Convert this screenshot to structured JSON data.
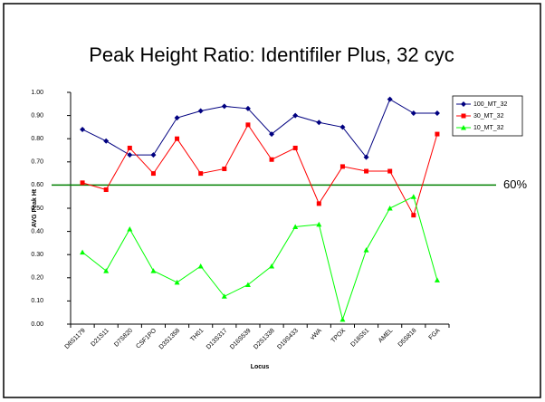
{
  "chart_data": {
    "type": "line",
    "title": "Peak Height Ratio: Identifiler Plus, 32 cyc",
    "x_label": "Locus",
    "y_label": "AVG Peak Ht",
    "categories": [
      "D8S1179",
      "D21S11",
      "D7S820",
      "CSF1PO",
      "D3S1358",
      "TH01",
      "D13S317",
      "D16S539",
      "D2S1338",
      "D19S433",
      "vWA",
      "TPOX",
      "D18S51",
      "AMEL",
      "D5S818",
      "FGA"
    ],
    "series": [
      {
        "name": "100_MT_32",
        "color": "#000080",
        "marker": "diamond",
        "values": [
          0.84,
          0.79,
          0.73,
          0.73,
          0.89,
          0.92,
          0.94,
          0.93,
          0.82,
          0.9,
          0.87,
          0.85,
          0.72,
          0.97,
          0.91,
          0.91
        ]
      },
      {
        "name": "30_MT_32",
        "color": "#ff0000",
        "marker": "square",
        "values": [
          0.61,
          0.58,
          0.76,
          0.65,
          0.8,
          0.65,
          0.67,
          0.86,
          0.71,
          0.76,
          0.52,
          0.68,
          0.66,
          0.66,
          0.47,
          0.82
        ]
      },
      {
        "name": "10_MT_32",
        "color": "#00ff00",
        "marker": "triangle",
        "values": [
          0.31,
          0.23,
          0.41,
          0.23,
          0.18,
          0.25,
          0.12,
          0.17,
          0.25,
          0.42,
          0.43,
          0.02,
          0.32,
          0.5,
          0.55,
          0.19
        ]
      }
    ],
    "ylim": [
      0,
      1
    ],
    "yticks": [
      {
        "value": 0,
        "label": "0.00"
      },
      {
        "value": 0.1,
        "label": "0.10"
      },
      {
        "value": 0.2,
        "label": "0.20"
      },
      {
        "value": 0.3,
        "label": "0.30"
      },
      {
        "value": 0.4,
        "label": "0.40"
      },
      {
        "value": 0.5,
        "label": "0.50"
      },
      {
        "value": 0.6,
        "label": "0.60"
      },
      {
        "value": 0.7,
        "label": "0.70"
      },
      {
        "value": 0.8,
        "label": "0.80"
      },
      {
        "value": 0.9,
        "label": "0.90"
      },
      {
        "value": 1,
        "label": "1.00"
      }
    ],
    "threshold": {
      "value": 0.6,
      "label": "60%",
      "color": "#008000"
    },
    "grid": false,
    "legend": "top-right"
  }
}
